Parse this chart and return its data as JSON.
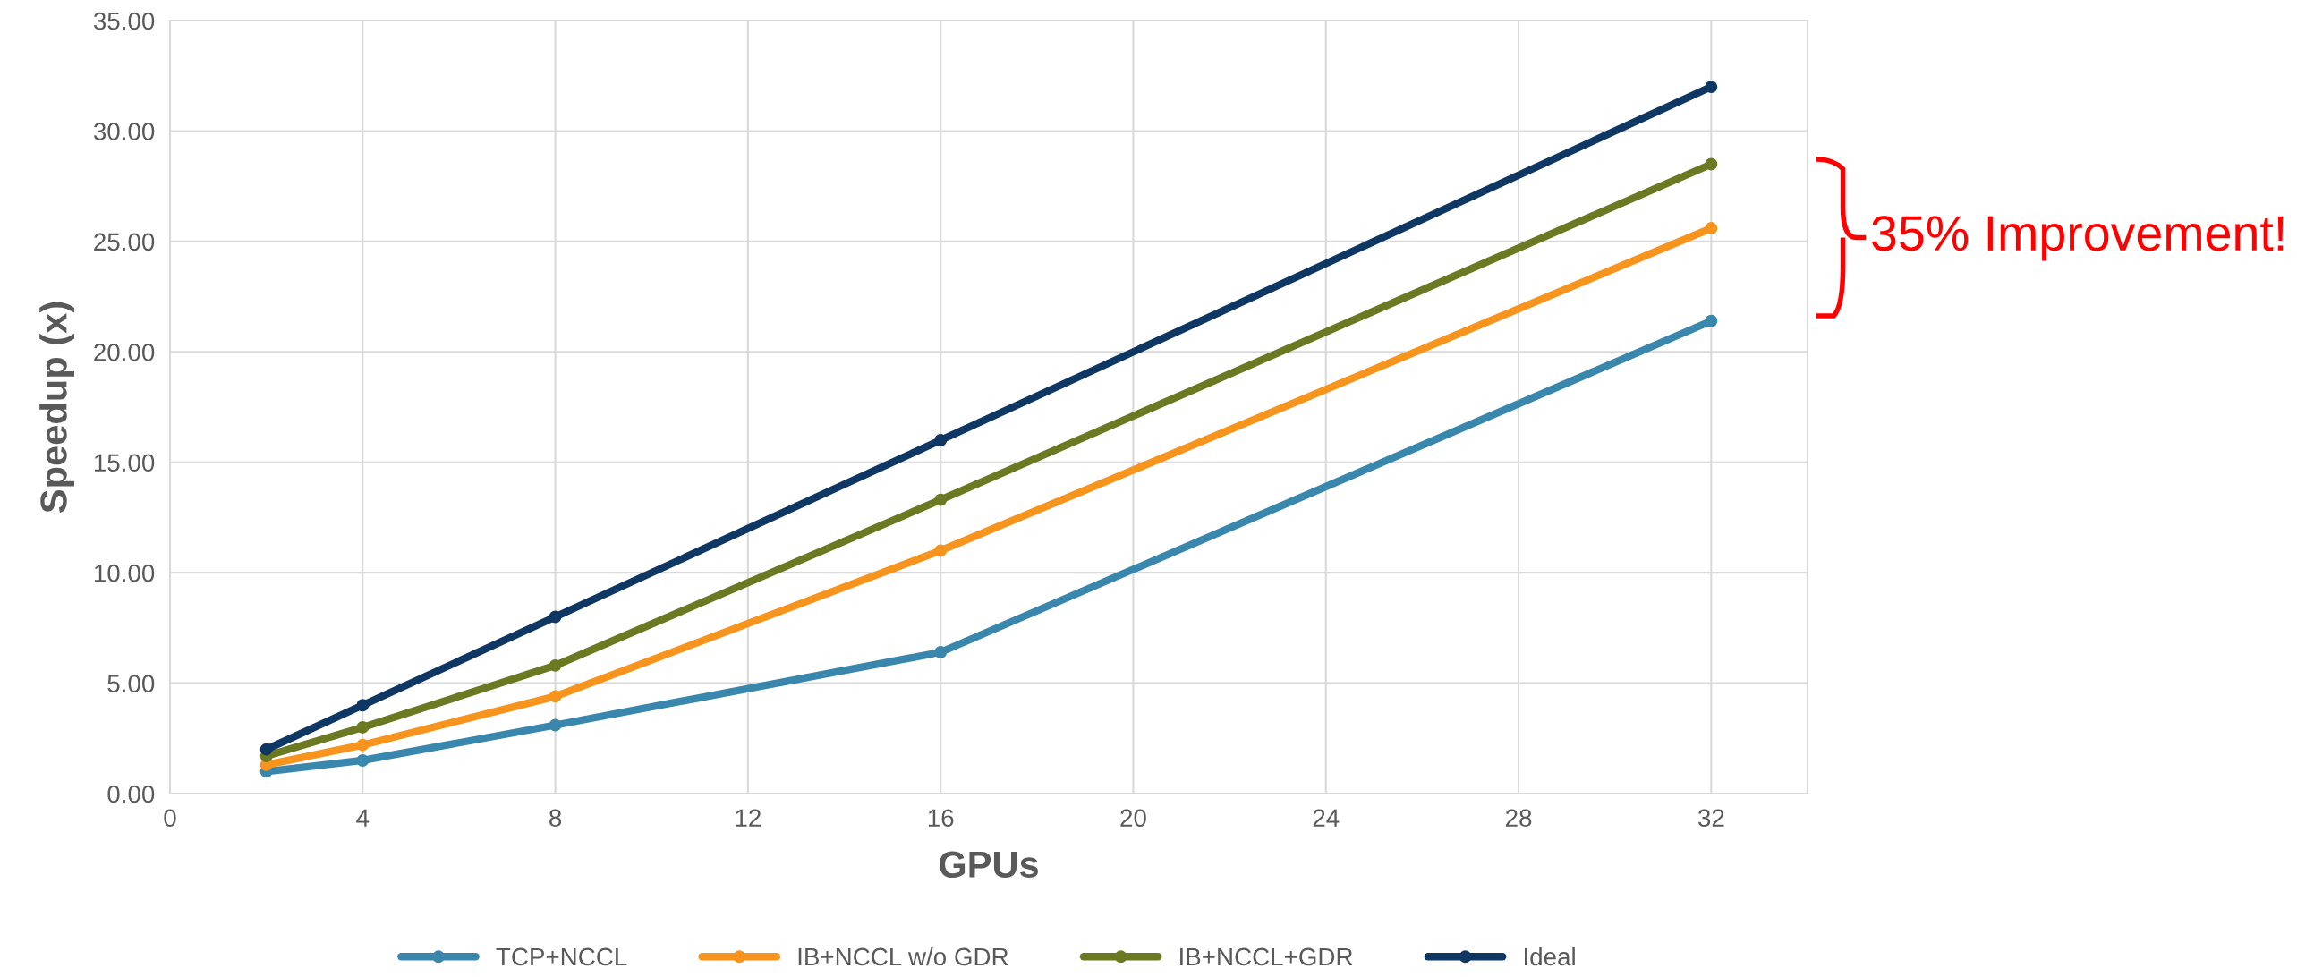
{
  "chart_data": {
    "type": "line",
    "xlabel": "GPUs",
    "ylabel": "Speedup (x)",
    "x": [
      2,
      4,
      8,
      16,
      32
    ],
    "series": [
      {
        "name": "TCP+NCCL",
        "color": "#3a87ad",
        "values": [
          1.0,
          1.5,
          3.1,
          6.4,
          21.4
        ]
      },
      {
        "name": "IB+NCCL w/o GDR",
        "color": "#f7941d",
        "values": [
          1.3,
          2.2,
          4.4,
          11.0,
          25.6
        ]
      },
      {
        "name": "IB+NCCL+GDR",
        "color": "#6b7a22",
        "values": [
          1.7,
          3.0,
          5.8,
          13.3,
          28.5
        ]
      },
      {
        "name": "Ideal",
        "color": "#0e3763",
        "values": [
          2,
          4,
          8,
          16,
          32
        ]
      }
    ],
    "xlim": [
      0,
      34
    ],
    "xticks": [
      0,
      4,
      8,
      12,
      16,
      20,
      24,
      28,
      32
    ],
    "ylim": [
      0,
      35
    ],
    "yticks": [
      {
        "value": 0,
        "label": "0.00"
      },
      {
        "value": 5,
        "label": "5.00"
      },
      {
        "value": 10,
        "label": "10.00"
      },
      {
        "value": 15,
        "label": "15.00"
      },
      {
        "value": 20,
        "label": "20.00"
      },
      {
        "value": 25,
        "label": "25.00"
      },
      {
        "value": 30,
        "label": "30.00"
      },
      {
        "value": 35,
        "label": "35.00"
      }
    ],
    "annotations": [
      "35% Improvement!"
    ],
    "grid": true,
    "legend": "bottom",
    "marker": "circle",
    "line_style": "solid"
  }
}
